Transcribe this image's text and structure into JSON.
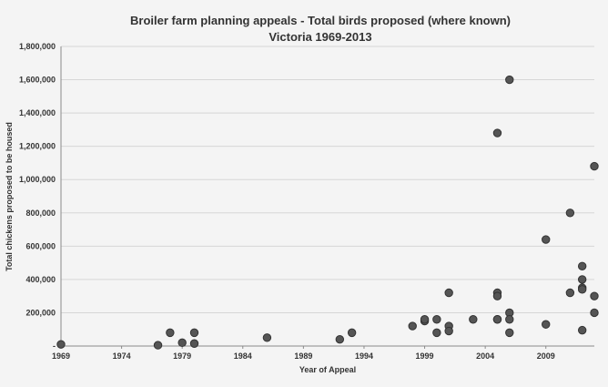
{
  "chart_data": {
    "type": "scatter",
    "title": "Broiler farm planning appeals - Total birds proposed (where known)",
    "subtitle": "Victoria 1969-2013",
    "xlabel": "Year of Appeal",
    "ylabel": "Total chickens proposed to be housed",
    "xlim": [
      1969,
      2013
    ],
    "ylim": [
      0,
      1800000
    ],
    "x_ticks": [
      "1969",
      "1974",
      "1979",
      "1984",
      "1989",
      "1994",
      "1999",
      "2004",
      "2009"
    ],
    "y_ticks": [
      "-",
      "200,000",
      "400,000",
      "600,000",
      "800,000",
      "1,000,000",
      "1,200,000",
      "1,400,000",
      "1,600,000",
      "1,800,000"
    ],
    "grid": true,
    "legend": "none",
    "x": [
      1969,
      1977,
      1978,
      1979,
      1980,
      1980,
      1986,
      1992,
      1993,
      1998,
      1999,
      1999,
      2000,
      2000,
      2001,
      2001,
      2001,
      2003,
      2005,
      2005,
      2005,
      2005,
      2005,
      2006,
      2006,
      2006,
      2006,
      2009,
      2009,
      2011,
      2011,
      2012,
      2012,
      2012,
      2012,
      2012,
      2013,
      2013,
      2013
    ],
    "y": [
      10000,
      5000,
      80000,
      20000,
      80000,
      15000,
      50000,
      40000,
      80000,
      120000,
      150000,
      160000,
      160000,
      80000,
      120000,
      90000,
      320000,
      160000,
      1280000,
      320000,
      300000,
      160000,
      160000,
      1600000,
      200000,
      160000,
      80000,
      640000,
      130000,
      800000,
      320000,
      480000,
      400000,
      350000,
      340000,
      95000,
      1080000,
      300000,
      200000
    ]
  }
}
